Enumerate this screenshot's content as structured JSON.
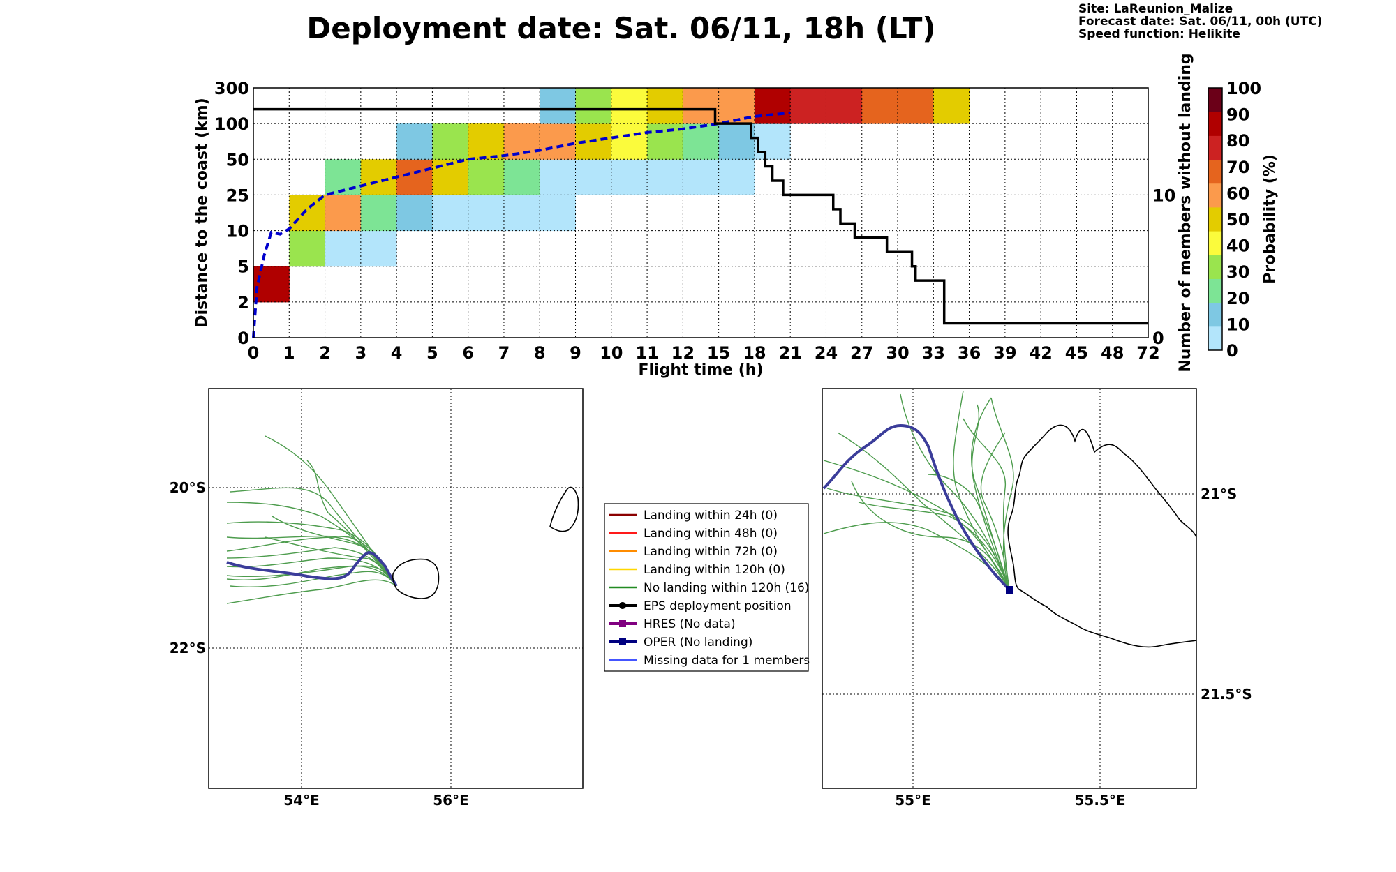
{
  "header": {
    "title": "Deployment date: Sat. 06/11, 18h (LT)",
    "site": "Site: LaReunion_Malize",
    "forecast": "Forecast date: Sat. 06/11, 00h (UTC)",
    "speed": "Speed function: Helikite"
  },
  "chart_data": [
    {
      "type": "heatmap",
      "title": "",
      "xlabel": "Flight time (h)",
      "ylabel": "Distance to the coast (km)",
      "y2label": "Number of members without landing",
      "x_ticks": [
        "0",
        "1",
        "2",
        "3",
        "4",
        "5",
        "6",
        "7",
        "8",
        "9",
        "10",
        "11",
        "12",
        "15",
        "18",
        "21",
        "24",
        "27",
        "30",
        "33",
        "36",
        "39",
        "42",
        "45",
        "48",
        "72"
      ],
      "y_ticks": [
        "0",
        "2",
        "5",
        "10",
        "25",
        "50",
        "100",
        "300"
      ],
      "y2_ticks": [
        "0",
        "10"
      ],
      "grid": true,
      "colorbar": {
        "label": "Probability (%)",
        "ticks": [
          "0",
          "10",
          "20",
          "30",
          "40",
          "50",
          "60",
          "70",
          "80",
          "90",
          "100"
        ],
        "colors": [
          "#b3e5fb",
          "#7ec8e3",
          "#7de495",
          "#9ae44e",
          "#fbfb3c",
          "#e3cc00",
          "#fb9a4c",
          "#e5641e",
          "#cc2222",
          "#b00000",
          "#6b0018"
        ]
      },
      "cells": [
        {
          "x": 0,
          "y": 1,
          "p": 95
        },
        {
          "x": 1,
          "y": 2,
          "p": 35
        },
        {
          "x": 1,
          "y": 3,
          "p": 55
        },
        {
          "x": 2,
          "y": 2,
          "p": 5
        },
        {
          "x": 2,
          "y": 3,
          "p": 65
        },
        {
          "x": 2,
          "y": 4,
          "p": 25
        },
        {
          "x": 3,
          "y": 2,
          "p": 5
        },
        {
          "x": 3,
          "y": 3,
          "p": 25
        },
        {
          "x": 3,
          "y": 4,
          "p": 55
        },
        {
          "x": 4,
          "y": 3,
          "p": 15
        },
        {
          "x": 4,
          "y": 4,
          "p": 75
        },
        {
          "x": 4,
          "y": 5,
          "p": 15
        },
        {
          "x": 5,
          "y": 3,
          "p": 5
        },
        {
          "x": 5,
          "y": 4,
          "p": 55
        },
        {
          "x": 5,
          "y": 5,
          "p": 35
        },
        {
          "x": 6,
          "y": 3,
          "p": 5
        },
        {
          "x": 6,
          "y": 4,
          "p": 35
        },
        {
          "x": 6,
          "y": 5,
          "p": 55
        },
        {
          "x": 7,
          "y": 3,
          "p": 5
        },
        {
          "x": 7,
          "y": 4,
          "p": 25
        },
        {
          "x": 7,
          "y": 5,
          "p": 65
        },
        {
          "x": 8,
          "y": 3,
          "p": 5
        },
        {
          "x": 8,
          "y": 4,
          "p": 5
        },
        {
          "x": 8,
          "y": 5,
          "p": 65
        },
        {
          "x": 8,
          "y": 6,
          "p": 15
        },
        {
          "x": 9,
          "y": 4,
          "p": 5
        },
        {
          "x": 9,
          "y": 5,
          "p": 55
        },
        {
          "x": 9,
          "y": 6,
          "p": 35
        },
        {
          "x": 10,
          "y": 4,
          "p": 5
        },
        {
          "x": 10,
          "y": 5,
          "p": 45
        },
        {
          "x": 10,
          "y": 6,
          "p": 45
        },
        {
          "x": 11,
          "y": 4,
          "p": 5
        },
        {
          "x": 11,
          "y": 5,
          "p": 35
        },
        {
          "x": 11,
          "y": 6,
          "p": 55
        },
        {
          "x": 12,
          "y": 4,
          "p": 5
        },
        {
          "x": 12,
          "y": 5,
          "p": 25
        },
        {
          "x": 12,
          "y": 6,
          "p": 65
        },
        {
          "x": 13,
          "y": 4,
          "p": 5
        },
        {
          "x": 13,
          "y": 5,
          "p": 15
        },
        {
          "x": 13,
          "y": 6,
          "p": 65
        },
        {
          "x": 14,
          "y": 5,
          "p": 5
        },
        {
          "x": 14,
          "y": 6,
          "p": 95
        },
        {
          "x": 15,
          "y": 6,
          "p": 85
        },
        {
          "x": 16,
          "y": 6,
          "p": 85
        },
        {
          "x": 17,
          "y": 6,
          "p": 75
        },
        {
          "x": 18,
          "y": 6,
          "p": 75
        },
        {
          "x": 19,
          "y": 6,
          "p": 55
        }
      ],
      "median_distance_line": {
        "color": "#0000cc",
        "style": "dashed",
        "points": [
          [
            0,
            0.0
          ],
          [
            0.1,
            1.4
          ],
          [
            0.3,
            2.3
          ],
          [
            0.5,
            2.95
          ],
          [
            0.75,
            2.9
          ],
          [
            1,
            3.05
          ],
          [
            1.5,
            3.6
          ],
          [
            2,
            4.0
          ],
          [
            3,
            4.25
          ],
          [
            4,
            4.5
          ],
          [
            5,
            4.75
          ],
          [
            6,
            5.0
          ],
          [
            7,
            5.1
          ],
          [
            8,
            5.25
          ],
          [
            9,
            5.45
          ],
          [
            10,
            5.6
          ],
          [
            11,
            5.75
          ],
          [
            12,
            5.85
          ],
          [
            13,
            6.0
          ],
          [
            14,
            6.2
          ],
          [
            15,
            6.3
          ]
        ]
      },
      "members_line": {
        "color": "#000000",
        "style": "solid",
        "points": [
          [
            0,
            16
          ],
          [
            12.9,
            16
          ],
          [
            12.9,
            15
          ],
          [
            13.9,
            15
          ],
          [
            13.9,
            14
          ],
          [
            14.1,
            14
          ],
          [
            14.1,
            13
          ],
          [
            14.3,
            13
          ],
          [
            14.3,
            12
          ],
          [
            14.5,
            12
          ],
          [
            14.5,
            11
          ],
          [
            14.8,
            11
          ],
          [
            14.8,
            10
          ],
          [
            16.2,
            10
          ],
          [
            16.2,
            9
          ],
          [
            16.4,
            9
          ],
          [
            16.4,
            8
          ],
          [
            16.8,
            8
          ],
          [
            16.8,
            7
          ],
          [
            17.7,
            7
          ],
          [
            17.7,
            6
          ],
          [
            18.4,
            6
          ],
          [
            18.4,
            5
          ],
          [
            18.5,
            5
          ],
          [
            18.5,
            4
          ],
          [
            19.3,
            4
          ],
          [
            19.3,
            1
          ],
          [
            25,
            1
          ]
        ]
      }
    }
  ],
  "maps": {
    "left": {
      "lat_labels": [
        "20°S",
        "22°S"
      ],
      "lon_labels": [
        "54°E",
        "56°E"
      ]
    },
    "right": {
      "lat_labels": [
        "21°S",
        "21.5°S"
      ],
      "lon_labels": [
        "55°E",
        "55.5°E"
      ]
    }
  },
  "legend": [
    {
      "label": "Landing within 24h (0)",
      "color": "#8b0000",
      "marker": "none"
    },
    {
      "label": "Landing within 48h (0)",
      "color": "#ff1a1a",
      "marker": "none"
    },
    {
      "label": "Landing within 72h (0)",
      "color": "#ff8c00",
      "marker": "none"
    },
    {
      "label": "Landing within 120h (0)",
      "color": "#ffd700",
      "marker": "none"
    },
    {
      "label": "No landing within 120h (16)",
      "color": "#228b22",
      "marker": "none"
    },
    {
      "label": "EPS deployment position",
      "color": "#000000",
      "marker": "circle"
    },
    {
      "label": "HRES (No data)",
      "color": "#800080",
      "marker": "square"
    },
    {
      "label": "OPER (No landing)",
      "color": "#000080",
      "marker": "square"
    },
    {
      "label": "Missing data for 1 members",
      "color": "#4455ff",
      "marker": "none"
    }
  ]
}
